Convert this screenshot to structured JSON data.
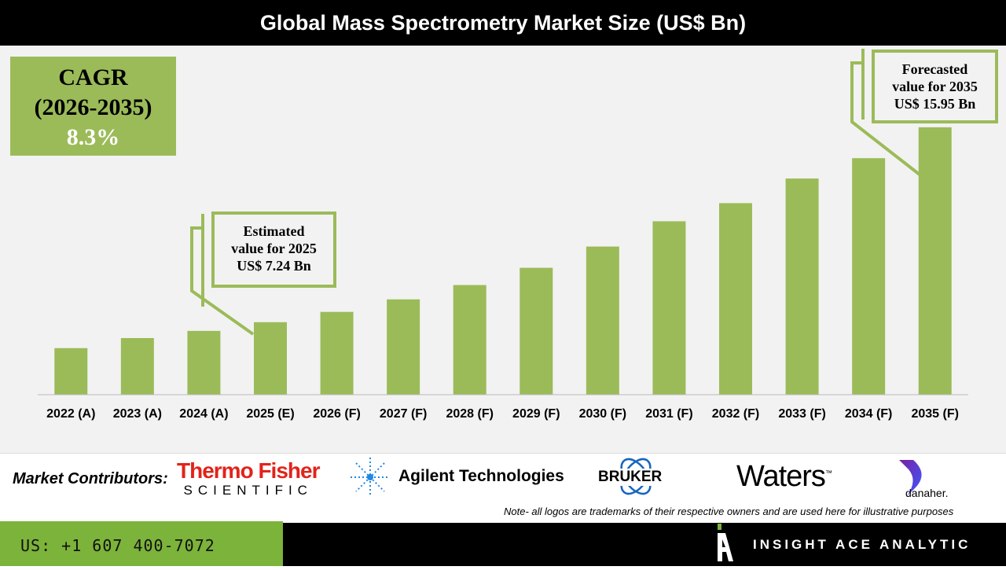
{
  "header": {
    "title": "Global Mass Spectrometry Market Size (US$ Bn)"
  },
  "cagr": {
    "label": "CAGR",
    "period": "(2026-2035)",
    "value": "8.3%"
  },
  "callouts": {
    "estimated": {
      "line1": "Estimated",
      "line2": "value for 2025",
      "line3": "US$ 7.24 Bn"
    },
    "forecasted": {
      "line1": "Forecasted",
      "line2": "value for 2035",
      "line3": "US$ 15.95 Bn"
    }
  },
  "chart_data": {
    "type": "bar",
    "title": "Global Mass Spectrometry Market Size (US$ Bn)",
    "categories": [
      "2022 (A)",
      "2023 (A)",
      "2024 (A)",
      "2025 (E)",
      "2026 (F)",
      "2027 (F)",
      "2028 (F)",
      "2029 (F)",
      "2030 (F)",
      "2031 (F)",
      "2032 (F)",
      "2033 (F)",
      "2034 (F)",
      "2035 (F)"
    ],
    "values": [
      6.08,
      6.53,
      6.85,
      7.24,
      7.7,
      8.26,
      8.9,
      9.67,
      10.62,
      11.75,
      12.56,
      13.66,
      14.57,
      15.95
    ],
    "ylim": [
      4,
      17
    ],
    "grid": false,
    "bar_color": "#9bbb59"
  },
  "contributors": {
    "label": "Market Contributors:",
    "logos": [
      {
        "name": "Thermo Fisher",
        "sub": "SCIENTIFIC"
      },
      {
        "name": "Agilent Technologies"
      },
      {
        "name": "BRUKER"
      },
      {
        "name": "Waters",
        "tm": "™"
      },
      {
        "name": "danaher."
      }
    ],
    "note": "Note- all logos are trademarks of their respective owners and are used here for illustrative purposes"
  },
  "footer": {
    "phone": "US: +1 607 400-7072",
    "brand": "INSIGHT ACE ANALYTIC",
    "accent": "#7cb33a"
  }
}
